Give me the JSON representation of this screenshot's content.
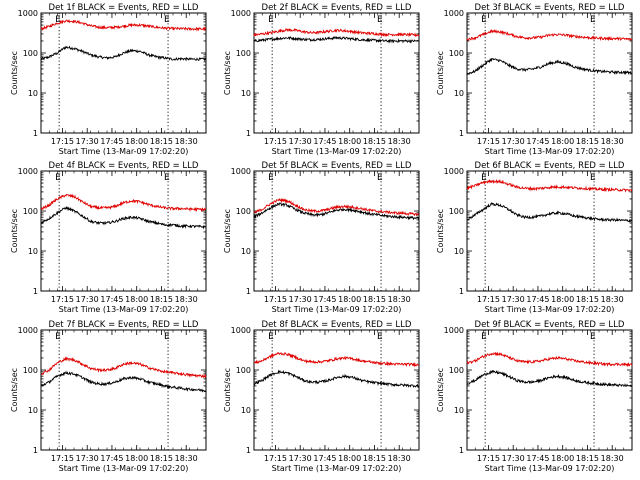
{
  "figure": {
    "ylabel": "Counts/sec",
    "xlabel": "Start Time (13-Mar-09 17:02:20)",
    "x_ticks": [
      "17:15",
      "17:30",
      "17:45",
      "18:00",
      "18:15",
      "18:30"
    ],
    "y_ticks": [
      "1",
      "10",
      "100",
      "1000"
    ],
    "marker_label": "E",
    "colors": {
      "events": "#000000",
      "lld": "#e00000",
      "marker_line": "#000000"
    }
  },
  "chart_data": [
    {
      "type": "line",
      "title": "Det 1f BLACK = Events, RED = LLD",
      "xlabel": "Start Time (13-Mar-09 17:02:20)",
      "ylabel": "Counts/sec",
      "x_unit": "minutes after 17:02:20",
      "xlim": [
        0,
        100
      ],
      "ylim": [
        1,
        1000
      ],
      "yscale": "log",
      "markers_x": [
        11,
        77
      ],
      "series": [
        {
          "name": "Events",
          "color": "#000000",
          "x": [
            0,
            5,
            10,
            15,
            20,
            25,
            30,
            35,
            40,
            45,
            50,
            55,
            60,
            65,
            70,
            75,
            80,
            85,
            90,
            95,
            100
          ],
          "y": [
            70,
            80,
            100,
            140,
            130,
            110,
            90,
            80,
            75,
            80,
            100,
            115,
            110,
            90,
            80,
            75,
            70,
            72,
            70,
            70,
            70
          ]
        },
        {
          "name": "LLD",
          "color": "#e00000",
          "x": [
            0,
            5,
            10,
            15,
            20,
            25,
            30,
            35,
            40,
            45,
            50,
            55,
            60,
            65,
            70,
            75,
            80,
            85,
            90,
            95,
            100
          ],
          "y": [
            400,
            460,
            560,
            640,
            620,
            560,
            480,
            440,
            430,
            440,
            470,
            500,
            500,
            470,
            440,
            420,
            410,
            405,
            400,
            400,
            400
          ]
        }
      ]
    },
    {
      "type": "line",
      "title": "Det 2f BLACK = Events, RED = LLD",
      "xlabel": "Start Time (13-Mar-09 17:02:20)",
      "ylabel": "Counts/sec",
      "x_unit": "minutes after 17:02:20",
      "xlim": [
        0,
        100
      ],
      "ylim": [
        1,
        1000
      ],
      "yscale": "log",
      "markers_x": [
        11,
        77
      ],
      "series": [
        {
          "name": "Events",
          "color": "#000000",
          "x": [
            0,
            5,
            10,
            15,
            20,
            25,
            30,
            35,
            40,
            45,
            50,
            55,
            60,
            65,
            70,
            75,
            80,
            85,
            90,
            95,
            100
          ],
          "y": [
            200,
            210,
            220,
            230,
            240,
            230,
            220,
            215,
            220,
            230,
            240,
            235,
            225,
            215,
            210,
            205,
            200,
            200,
            200,
            200,
            200
          ]
        },
        {
          "name": "LLD",
          "color": "#e00000",
          "x": [
            0,
            5,
            10,
            15,
            20,
            25,
            30,
            35,
            40,
            45,
            50,
            55,
            60,
            65,
            70,
            75,
            80,
            85,
            90,
            95,
            100
          ],
          "y": [
            280,
            300,
            320,
            350,
            380,
            370,
            340,
            320,
            330,
            350,
            370,
            360,
            340,
            320,
            310,
            300,
            290,
            290,
            290,
            285,
            280
          ]
        }
      ]
    },
    {
      "type": "line",
      "title": "Det 3f BLACK = Events, RED = LLD",
      "xlabel": "Start Time (13-Mar-09 17:02:20)",
      "ylabel": "Counts/sec",
      "x_unit": "minutes after 17:02:20",
      "xlim": [
        0,
        100
      ],
      "ylim": [
        1,
        1000
      ],
      "yscale": "log",
      "markers_x": [
        11,
        77
      ],
      "series": [
        {
          "name": "Events",
          "color": "#000000",
          "x": [
            0,
            5,
            10,
            15,
            20,
            25,
            30,
            35,
            40,
            45,
            50,
            55,
            60,
            65,
            70,
            75,
            80,
            85,
            90,
            95,
            100
          ],
          "y": [
            30,
            35,
            50,
            70,
            65,
            50,
            40,
            38,
            40,
            45,
            55,
            60,
            55,
            45,
            40,
            37,
            35,
            34,
            33,
            33,
            32
          ]
        },
        {
          "name": "LLD",
          "color": "#e00000",
          "x": [
            0,
            5,
            10,
            15,
            20,
            25,
            30,
            35,
            40,
            45,
            50,
            55,
            60,
            65,
            70,
            75,
            80,
            85,
            90,
            95,
            100
          ],
          "y": [
            220,
            240,
            290,
            350,
            340,
            300,
            260,
            240,
            240,
            250,
            280,
            290,
            280,
            260,
            250,
            240,
            235,
            230,
            230,
            225,
            220
          ]
        }
      ]
    },
    {
      "type": "line",
      "title": "Det 4f BLACK = Events, RED = LLD",
      "xlabel": "Start Time (13-Mar-09 17:02:20)",
      "ylabel": "Counts/sec",
      "x_unit": "minutes after 17:02:20",
      "xlim": [
        0,
        100
      ],
      "ylim": [
        1,
        1000
      ],
      "yscale": "log",
      "markers_x": [
        11,
        77
      ],
      "series": [
        {
          "name": "Events",
          "color": "#000000",
          "x": [
            0,
            5,
            10,
            15,
            20,
            25,
            30,
            35,
            40,
            45,
            50,
            55,
            60,
            65,
            70,
            75,
            80,
            85,
            90,
            95,
            100
          ],
          "y": [
            50,
            65,
            90,
            120,
            100,
            75,
            55,
            50,
            50,
            55,
            65,
            70,
            65,
            55,
            50,
            45,
            45,
            42,
            42,
            41,
            40
          ]
        },
        {
          "name": "LLD",
          "color": "#e00000",
          "x": [
            0,
            5,
            10,
            15,
            20,
            25,
            30,
            35,
            40,
            45,
            50,
            55,
            60,
            65,
            70,
            75,
            80,
            85,
            90,
            95,
            100
          ],
          "y": [
            110,
            140,
            200,
            250,
            230,
            170,
            130,
            120,
            120,
            130,
            160,
            180,
            170,
            145,
            130,
            120,
            115,
            115,
            112,
            110,
            110
          ]
        }
      ]
    },
    {
      "type": "line",
      "title": "Det 5f BLACK = Events, RED = LLD",
      "xlabel": "Start Time (13-Mar-09 17:02:20)",
      "ylabel": "Counts/sec",
      "x_unit": "minutes after 17:02:20",
      "xlim": [
        0,
        100
      ],
      "ylim": [
        1,
        1000
      ],
      "yscale": "log",
      "markers_x": [
        11,
        77
      ],
      "series": [
        {
          "name": "Events",
          "color": "#000000",
          "x": [
            0,
            5,
            10,
            15,
            20,
            25,
            30,
            35,
            40,
            45,
            50,
            55,
            60,
            65,
            70,
            75,
            80,
            85,
            90,
            95,
            100
          ],
          "y": [
            70,
            90,
            120,
            150,
            140,
            110,
            90,
            80,
            80,
            90,
            105,
            110,
            105,
            95,
            85,
            80,
            75,
            72,
            70,
            68,
            65
          ]
        },
        {
          "name": "LLD",
          "color": "#e00000",
          "x": [
            0,
            5,
            10,
            15,
            20,
            25,
            30,
            35,
            40,
            45,
            50,
            55,
            60,
            65,
            70,
            75,
            80,
            85,
            90,
            95,
            100
          ],
          "y": [
            90,
            110,
            150,
            190,
            180,
            140,
            110,
            100,
            100,
            110,
            125,
            130,
            125,
            115,
            105,
            98,
            95,
            90,
            88,
            85,
            82
          ]
        }
      ]
    },
    {
      "type": "line",
      "title": "Det 6f BLACK = Events, RED = LLD",
      "xlabel": "Start Time (13-Mar-09 17:02:20)",
      "ylabel": "Counts/sec",
      "x_unit": "minutes after 17:02:20",
      "xlim": [
        0,
        100
      ],
      "ylim": [
        1,
        1000
      ],
      "yscale": "log",
      "markers_x": [
        11,
        77
      ],
      "series": [
        {
          "name": "Events",
          "color": "#000000",
          "x": [
            0,
            5,
            10,
            15,
            20,
            25,
            30,
            35,
            40,
            45,
            50,
            55,
            60,
            65,
            70,
            75,
            80,
            85,
            90,
            95,
            100
          ],
          "y": [
            60,
            80,
            110,
            150,
            140,
            110,
            80,
            70,
            70,
            75,
            85,
            90,
            85,
            75,
            70,
            65,
            62,
            60,
            60,
            58,
            57
          ]
        },
        {
          "name": "LLD",
          "color": "#e00000",
          "x": [
            0,
            5,
            10,
            15,
            20,
            25,
            30,
            35,
            40,
            45,
            50,
            55,
            60,
            65,
            70,
            75,
            80,
            85,
            90,
            95,
            100
          ],
          "y": [
            370,
            430,
            520,
            560,
            540,
            470,
            400,
            370,
            360,
            370,
            390,
            400,
            395,
            380,
            370,
            360,
            350,
            345,
            340,
            335,
            330
          ]
        }
      ]
    },
    {
      "type": "line",
      "title": "Det 7f BLACK = Events, RED = LLD",
      "xlabel": "Start Time (13-Mar-09 17:02:20)",
      "ylabel": "Counts/sec",
      "x_unit": "minutes after 17:02:20",
      "xlim": [
        0,
        100
      ],
      "ylim": [
        1,
        1000
      ],
      "yscale": "log",
      "markers_x": [
        11,
        77
      ],
      "series": [
        {
          "name": "Events",
          "color": "#000000",
          "x": [
            0,
            5,
            10,
            15,
            20,
            25,
            30,
            35,
            40,
            45,
            50,
            55,
            60,
            65,
            70,
            75,
            80,
            85,
            90,
            95,
            100
          ],
          "y": [
            40,
            50,
            70,
            85,
            80,
            65,
            50,
            45,
            45,
            50,
            60,
            65,
            60,
            50,
            45,
            40,
            37,
            35,
            33,
            32,
            30
          ]
        },
        {
          "name": "LLD",
          "color": "#e00000",
          "x": [
            0,
            5,
            10,
            15,
            20,
            25,
            30,
            35,
            40,
            45,
            50,
            55,
            60,
            65,
            70,
            75,
            80,
            85,
            90,
            95,
            100
          ],
          "y": [
            80,
            100,
            150,
            190,
            180,
            140,
            110,
            100,
            100,
            110,
            140,
            150,
            140,
            115,
            100,
            90,
            85,
            80,
            75,
            72,
            70
          ]
        }
      ]
    },
    {
      "type": "line",
      "title": "Det 8f BLACK = Events, RED = LLD",
      "xlabel": "Start Time (13-Mar-09 17:02:20)",
      "ylabel": "Counts/sec",
      "x_unit": "minutes after 17:02:20",
      "xlim": [
        0,
        100
      ],
      "ylim": [
        1,
        1000
      ],
      "yscale": "log",
      "markers_x": [
        11,
        77
      ],
      "series": [
        {
          "name": "Events",
          "color": "#000000",
          "x": [
            0,
            5,
            10,
            15,
            20,
            25,
            30,
            35,
            40,
            45,
            50,
            55,
            60,
            65,
            70,
            75,
            80,
            85,
            90,
            95,
            100
          ],
          "y": [
            45,
            55,
            75,
            90,
            85,
            70,
            55,
            50,
            50,
            55,
            65,
            70,
            65,
            55,
            50,
            47,
            45,
            43,
            42,
            41,
            40
          ]
        },
        {
          "name": "LLD",
          "color": "#e00000",
          "x": [
            0,
            5,
            10,
            15,
            20,
            25,
            30,
            35,
            40,
            45,
            50,
            55,
            60,
            65,
            70,
            75,
            80,
            85,
            90,
            95,
            100
          ],
          "y": [
            150,
            170,
            220,
            260,
            250,
            210,
            170,
            160,
            160,
            170,
            190,
            200,
            190,
            170,
            160,
            150,
            145,
            140,
            140,
            138,
            135
          ]
        }
      ]
    },
    {
      "type": "line",
      "title": "Det 9f BLACK = Events, RED = LLD",
      "xlabel": "Start Time (13-Mar-09 17:02:20)",
      "ylabel": "Counts/sec",
      "x_unit": "minutes after 17:02:20",
      "xlim": [
        0,
        100
      ],
      "ylim": [
        1,
        1000
      ],
      "yscale": "log",
      "markers_x": [
        11,
        77
      ],
      "series": [
        {
          "name": "Events",
          "color": "#000000",
          "x": [
            0,
            5,
            10,
            15,
            20,
            25,
            30,
            35,
            40,
            45,
            50,
            55,
            60,
            65,
            70,
            75,
            80,
            85,
            90,
            95,
            100
          ],
          "y": [
            45,
            55,
            75,
            90,
            85,
            70,
            55,
            50,
            50,
            55,
            65,
            70,
            65,
            55,
            50,
            47,
            45,
            43,
            42,
            41,
            40
          ]
        },
        {
          "name": "LLD",
          "color": "#e00000",
          "x": [
            0,
            5,
            10,
            15,
            20,
            25,
            30,
            35,
            40,
            45,
            50,
            55,
            60,
            65,
            70,
            75,
            80,
            85,
            90,
            95,
            100
          ],
          "y": [
            150,
            170,
            220,
            260,
            250,
            210,
            170,
            160,
            160,
            170,
            190,
            200,
            190,
            170,
            160,
            150,
            145,
            140,
            140,
            138,
            135
          ]
        }
      ]
    }
  ]
}
